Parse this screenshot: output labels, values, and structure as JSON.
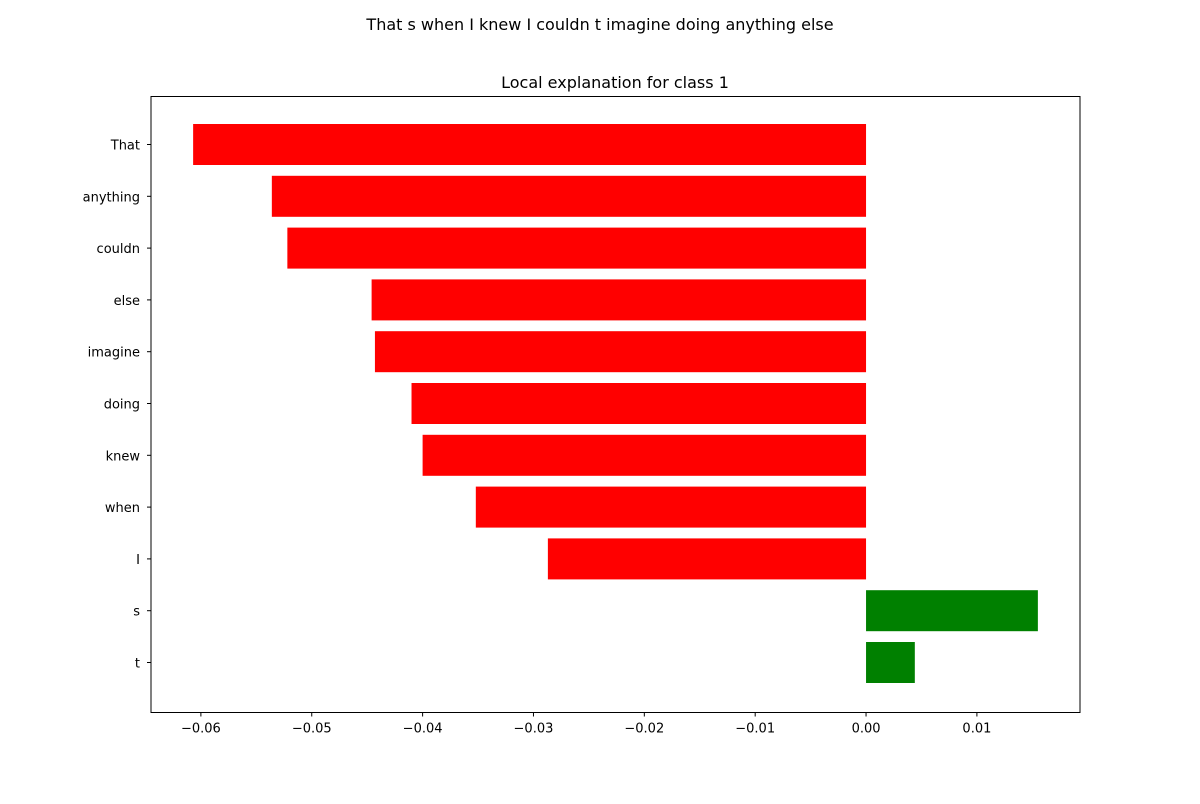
{
  "figure": {
    "suptitle": "That s when I knew I couldn t imagine doing anything else"
  },
  "chart_data": {
    "type": "bar",
    "orientation": "horizontal",
    "title": "Local explanation for class 1",
    "xlabel": "",
    "ylabel": "",
    "categories": [
      "That",
      "anything",
      "couldn",
      "else",
      "imagine",
      "doing",
      "knew",
      "when",
      "I",
      "s",
      "t"
    ],
    "values": [
      -0.0607,
      -0.0536,
      -0.0522,
      -0.0446,
      -0.0443,
      -0.041,
      -0.04,
      -0.0352,
      -0.0287,
      0.0155,
      0.0044
    ],
    "colors": {
      "negative": "#ff0000",
      "positive": "#008000"
    },
    "xlim": [
      -0.0645,
      0.0193
    ],
    "xticks": [
      -0.06,
      -0.05,
      -0.04,
      -0.03,
      -0.02,
      -0.01,
      0.0,
      0.01
    ],
    "xtick_labels": [
      "−0.06",
      "−0.05",
      "−0.04",
      "−0.03",
      "−0.02",
      "−0.01",
      "0.00",
      "0.01"
    ],
    "grid": false,
    "legend": "none"
  }
}
